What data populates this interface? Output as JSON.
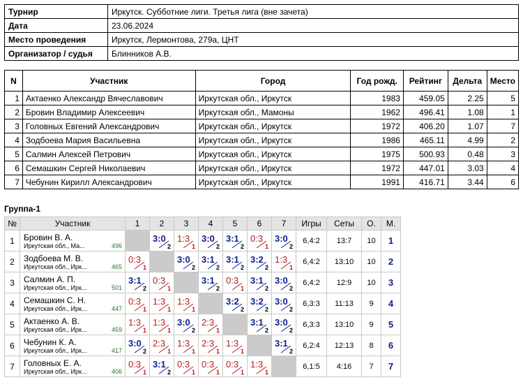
{
  "info": [
    {
      "label": "Турнир",
      "value": "Иркутск. Субботние лиги. Третья лига (вне зачета)"
    },
    {
      "label": "Дата",
      "value": "23.06.2024"
    },
    {
      "label": "Место проведения",
      "value": "Иркутск, Лермонтова, 279а, ЦНТ"
    },
    {
      "label": "Организатор / судья",
      "value": "Блинников А.В."
    }
  ],
  "participants": {
    "headers": [
      "N",
      "Участник",
      "Город",
      "Год рожд.",
      "Рейтинг",
      "Дельта",
      "Место"
    ],
    "rows": [
      [
        "1",
        "Актаенко Александр Вячеславович",
        "Иркутская обл., Иркутск",
        "1983",
        "459.05",
        "2.25",
        "5"
      ],
      [
        "2",
        "Бровин Владимир Алексеевич",
        "Иркутская обл., Мамоны",
        "1962",
        "496.41",
        "1.08",
        "1"
      ],
      [
        "3",
        "Головных Евгений Александрович",
        "Иркутская обл., Иркутск",
        "1972",
        "406.20",
        "1.07",
        "7"
      ],
      [
        "4",
        "Зодбоева Мария Васильевна",
        "Иркутская обл., Иркутск",
        "1986",
        "465.11",
        "4.99",
        "2"
      ],
      [
        "5",
        "Салмин Алексей Петрович",
        "Иркутская обл., Иркутск",
        "1975",
        "500.93",
        "0.48",
        "3"
      ],
      [
        "6",
        "Семашкин Сергей Николаевич",
        "Иркутская обл., Иркутск",
        "1972",
        "447.01",
        "3.03",
        "4"
      ],
      [
        "7",
        "Чебунин Кирилл Александрович",
        "Иркутская обл., Иркутск",
        "1991",
        "416.71",
        "3.44",
        "6"
      ]
    ]
  },
  "group": {
    "title": "Группа-1",
    "headers": [
      "№",
      "Участник",
      "1",
      "2",
      "3",
      "4",
      "5",
      "6",
      "7",
      "Игры",
      "Сеты",
      "О.",
      "М."
    ],
    "rows": [
      {
        "n": "1",
        "name": "Бровин В. А.",
        "city": "Иркутская обл., Ма...",
        "rating": "496",
        "results": [
          null,
          [
            "3:0",
            "2"
          ],
          [
            "1:3",
            "1"
          ],
          [
            "3:0",
            "2"
          ],
          [
            "3:1",
            "2"
          ],
          [
            "0:3",
            "1"
          ],
          [
            "3:0",
            "2"
          ]
        ],
        "games": "6,4:2",
        "sets": "13:7",
        "points": "10",
        "place": "1"
      },
      {
        "n": "2",
        "name": "Зодбоева М. В.",
        "city": "Иркутская обл., Ирк...",
        "rating": "465",
        "results": [
          [
            "0:3",
            "1"
          ],
          null,
          [
            "3:0",
            "2"
          ],
          [
            "3:1",
            "2"
          ],
          [
            "3:1",
            "2"
          ],
          [
            "3:2",
            "2"
          ],
          [
            "1:3",
            "1"
          ]
        ],
        "games": "6,4:2",
        "sets": "13:10",
        "points": "10",
        "place": "2"
      },
      {
        "n": "3",
        "name": "Салмин А. П.",
        "city": "Иркутская обл., Ирк...",
        "rating": "501",
        "results": [
          [
            "3:1",
            "2"
          ],
          [
            "0:3",
            "1"
          ],
          null,
          [
            "3:1",
            "2"
          ],
          [
            "0:3",
            "1"
          ],
          [
            "3:1",
            "2"
          ],
          [
            "3:0",
            "2"
          ]
        ],
        "games": "6,4:2",
        "sets": "12:9",
        "points": "10",
        "place": "3"
      },
      {
        "n": "4",
        "name": "Семашкин С. Н.",
        "city": "Иркутская обл., Ирк...",
        "rating": "447",
        "results": [
          [
            "0:3",
            "1"
          ],
          [
            "1:3",
            "1"
          ],
          [
            "1:3",
            "1"
          ],
          null,
          [
            "3:2",
            "2"
          ],
          [
            "3:2",
            "2"
          ],
          [
            "3:0",
            "2"
          ]
        ],
        "games": "6,3:3",
        "sets": "11:13",
        "points": "9",
        "place": "4"
      },
      {
        "n": "5",
        "name": "Актаенко А. В.",
        "city": "Иркутская обл., Ирк...",
        "rating": "459",
        "results": [
          [
            "1:3",
            "1"
          ],
          [
            "1:3",
            "1"
          ],
          [
            "3:0",
            "2"
          ],
          [
            "2:3",
            "1"
          ],
          null,
          [
            "3:1",
            "2"
          ],
          [
            "3:0",
            "2"
          ]
        ],
        "games": "6,3:3",
        "sets": "13:10",
        "points": "9",
        "place": "5"
      },
      {
        "n": "6",
        "name": "Чебунин К. А.",
        "city": "Иркутская обл., Ирк...",
        "rating": "417",
        "results": [
          [
            "3:0",
            "2"
          ],
          [
            "2:3",
            "1"
          ],
          [
            "1:3",
            "1"
          ],
          [
            "2:3",
            "1"
          ],
          [
            "1:3",
            "1"
          ],
          null,
          [
            "3:1",
            "2"
          ]
        ],
        "games": "6,2:4",
        "sets": "12:13",
        "points": "8",
        "place": "6"
      },
      {
        "n": "7",
        "name": "Головных Е. А.",
        "city": "Иркутская обл., Ирк...",
        "rating": "406",
        "results": [
          [
            "0:3",
            "1"
          ],
          [
            "3:1",
            "2"
          ],
          [
            "0:3",
            "1"
          ],
          [
            "0:3",
            "1"
          ],
          [
            "0:3",
            "1"
          ],
          [
            "1:3",
            "1"
          ],
          null
        ],
        "games": "6,1:5",
        "sets": "4:16",
        "points": "7",
        "place": "7"
      }
    ]
  }
}
